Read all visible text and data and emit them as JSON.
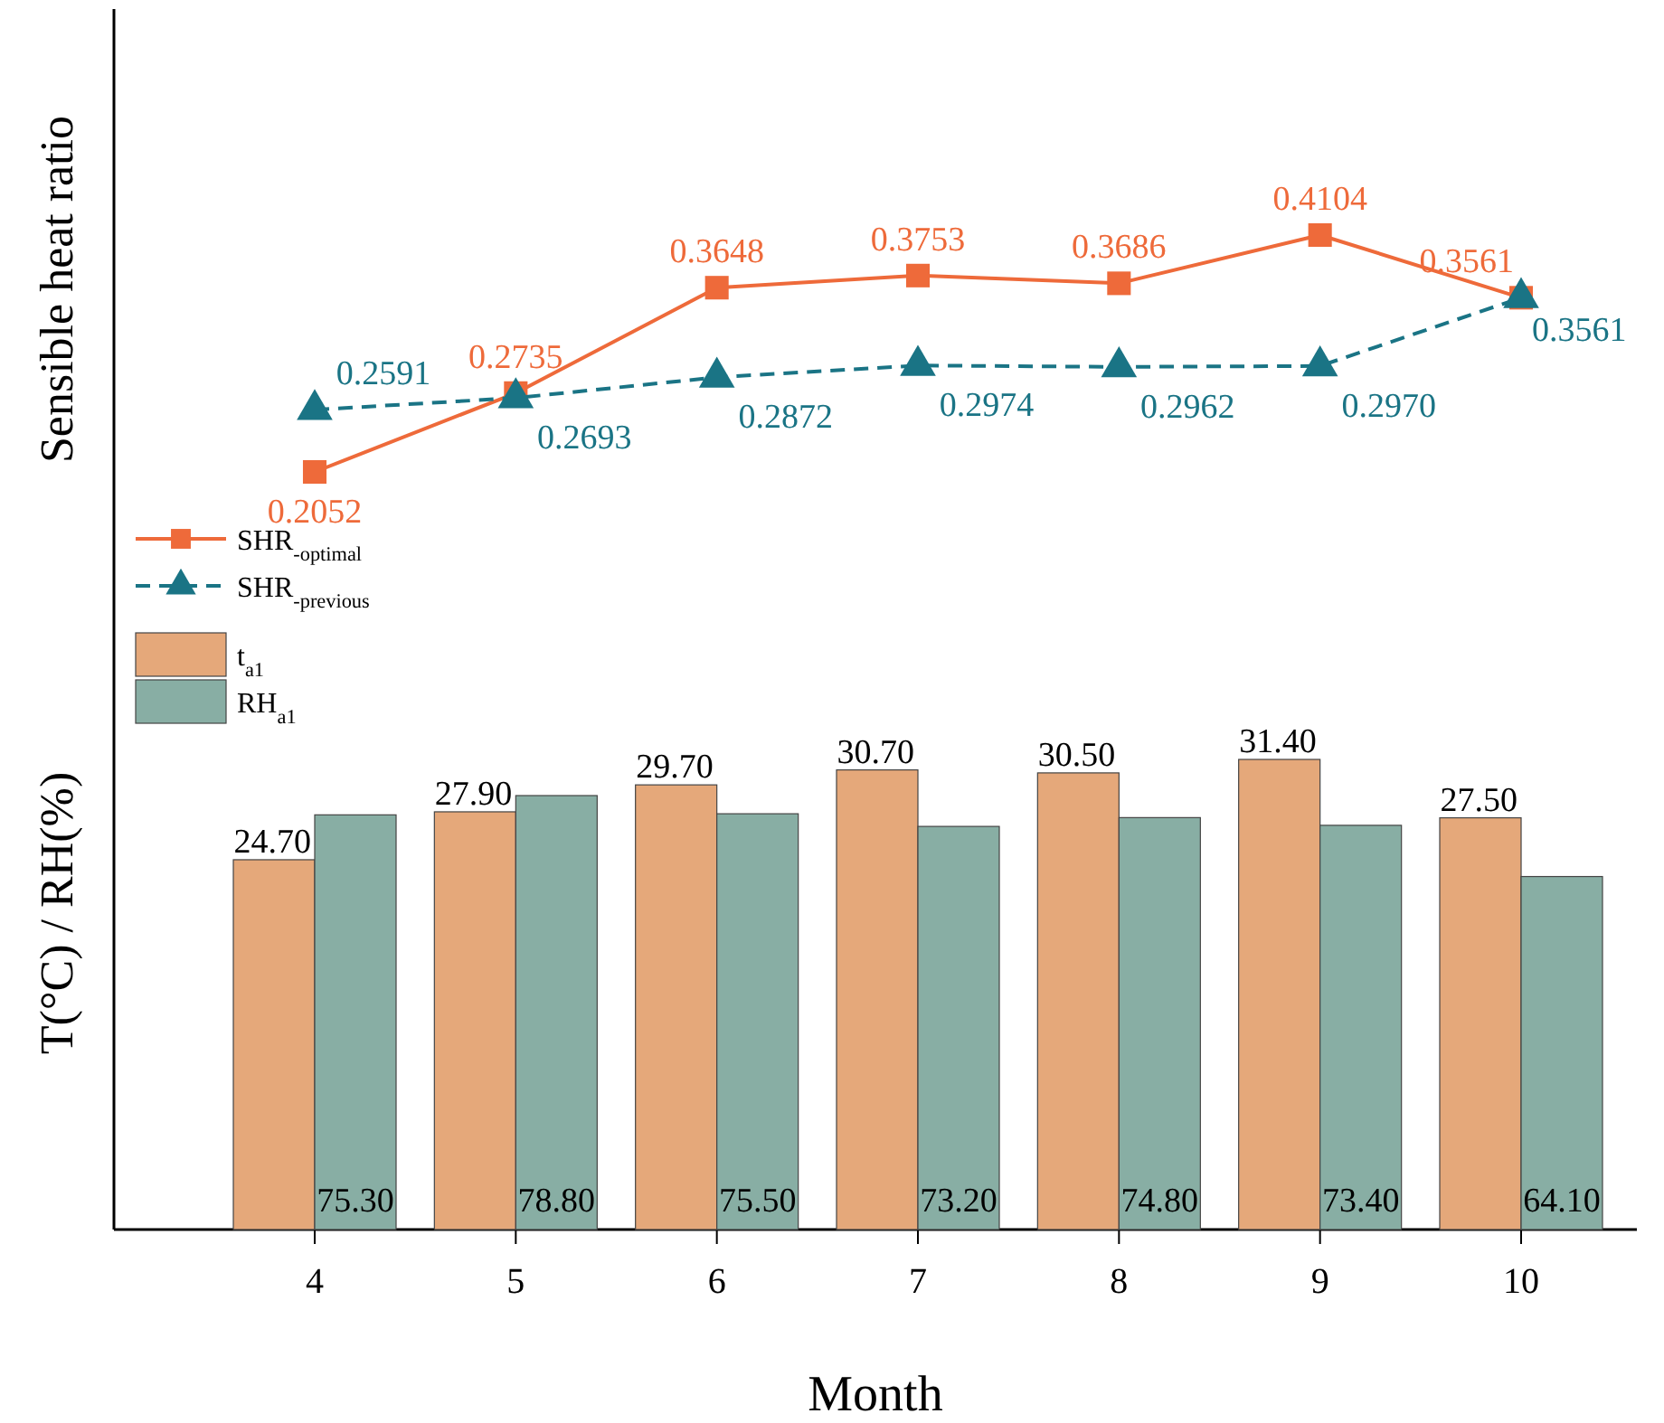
{
  "chart_data": [
    {
      "type": "line",
      "ylabel": "Sensible heat ratio",
      "categories": [
        "4",
        "5",
        "6",
        "7",
        "8",
        "9",
        "10"
      ],
      "tick_labels": false,
      "legend": "left",
      "series": [
        {
          "name": "SHR$_{-optimal}$",
          "color": "#ee6a3a",
          "marker": "square",
          "line_style": "solid",
          "values": [
            0.2052,
            0.2735,
            0.3648,
            0.3753,
            0.3686,
            0.4104,
            0.3561
          ],
          "value_labels": [
            "0.2052",
            "0.2735",
            "0.3648",
            "0.3753",
            "0.3686",
            "0.4104",
            "0.3561"
          ]
        },
        {
          "name": "SHR$_{-previous}$",
          "color": "#1a7485",
          "marker": "triangle",
          "line_style": "dashed",
          "values": [
            0.2591,
            0.2693,
            0.2872,
            0.2974,
            0.2962,
            0.297,
            0.3561
          ],
          "value_labels": [
            "0.2591",
            "0.2693",
            "0.2872",
            "0.2974",
            "0.2962",
            "0.2970",
            "0.3561"
          ]
        }
      ]
    },
    {
      "type": "bar",
      "xlabel": "Month",
      "ylabel": "T(°C) / RH(%)",
      "categories": [
        "4",
        "5",
        "6",
        "7",
        "8",
        "9",
        "10"
      ],
      "tick_labels": "x",
      "legend": "left",
      "series": [
        {
          "name": "t$_{a1}$",
          "axis": "y",
          "color": "#e5a87a",
          "values": [
            24.7,
            27.9,
            29.7,
            30.7,
            30.5,
            31.4,
            27.5
          ],
          "value_labels": [
            "24.70",
            "27.90",
            "29.70",
            "30.70",
            "30.50",
            "31.40",
            "27.50"
          ]
        },
        {
          "name": "RH$_{a1}$",
          "axis": "y2",
          "color": "#88aea4",
          "values": [
            75.3,
            78.8,
            75.5,
            73.2,
            74.8,
            73.4,
            64.1
          ],
          "value_labels": [
            "75.30",
            "78.80",
            "75.50",
            "73.20",
            "74.80",
            "73.40",
            "64.10"
          ]
        }
      ]
    }
  ]
}
